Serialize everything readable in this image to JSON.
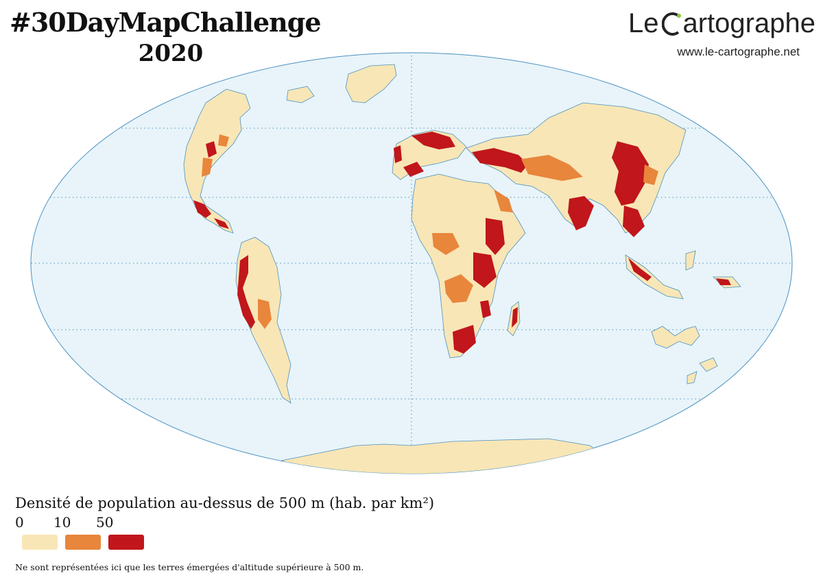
{
  "title": {
    "main": "#30DayMapChallenge",
    "year": "2020"
  },
  "brand": {
    "name_before": "Le ",
    "name_initial": "C",
    "name_after": "artographe",
    "url": "www.le-cartographe.net"
  },
  "legend": {
    "title": "Densité de population au-dessus de 500 m (hab. par km²)",
    "ticks": [
      "0",
      "10",
      "50"
    ],
    "classes": [
      {
        "range": "0-10",
        "color": "#f8e6b6"
      },
      {
        "range": "10-50",
        "color": "#e8863c"
      },
      {
        "range": ">50",
        "color": "#c0161c"
      }
    ]
  },
  "note": "Ne sont représentées ici que les terres émergées d'altitude supérieure à 500 m.",
  "colors": {
    "ocean": "#e8f4f9",
    "coast": "#4a90c2",
    "graticule": "#4a90c2",
    "brand_accent": "#8cc63f",
    "low": "#f8e6b6",
    "mid": "#e8863c",
    "high": "#c0161c"
  }
}
